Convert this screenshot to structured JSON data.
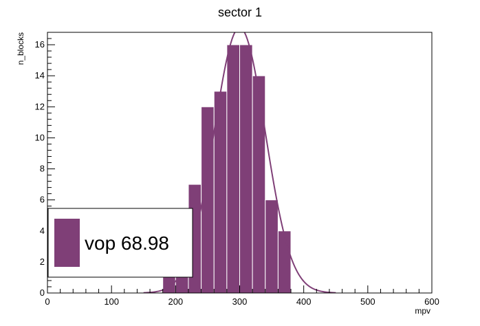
{
  "chart_data": {
    "type": "bar",
    "title": "sector 1",
    "xlabel": "mpv",
    "ylabel": "n_blocks",
    "xlim": [
      0,
      600
    ],
    "ylim": [
      0,
      16.8
    ],
    "x_ticks": [
      0,
      100,
      200,
      300,
      400,
      500,
      600
    ],
    "y_ticks": [
      0,
      2,
      4,
      6,
      8,
      10,
      12,
      14,
      16
    ],
    "bin_width": 20,
    "bins": [
      {
        "x0": 180,
        "x1": 200,
        "value": 2
      },
      {
        "x0": 200,
        "x1": 220,
        "value": 3
      },
      {
        "x0": 220,
        "x1": 240,
        "value": 7
      },
      {
        "x0": 240,
        "x1": 260,
        "value": 12
      },
      {
        "x0": 260,
        "x1": 280,
        "value": 13
      },
      {
        "x0": 280,
        "x1": 300,
        "value": 16
      },
      {
        "x0": 300,
        "x1": 320,
        "value": 16
      },
      {
        "x0": 320,
        "x1": 340,
        "value": 14
      },
      {
        "x0": 340,
        "x1": 360,
        "value": 6
      },
      {
        "x0": 360,
        "x1": 380,
        "value": 4
      }
    ],
    "fit": {
      "type": "gaussian",
      "amplitude": 17.1,
      "mean": 300,
      "sigma": 40,
      "range": [
        150,
        450
      ]
    },
    "legend": {
      "placement": "bottom-left",
      "entries": [
        {
          "label": "vop 68.98"
        }
      ]
    },
    "colors": {
      "bar": "#7f3f77",
      "bar_edge": "#ffffff",
      "fit_line": "#7f3f77"
    }
  }
}
